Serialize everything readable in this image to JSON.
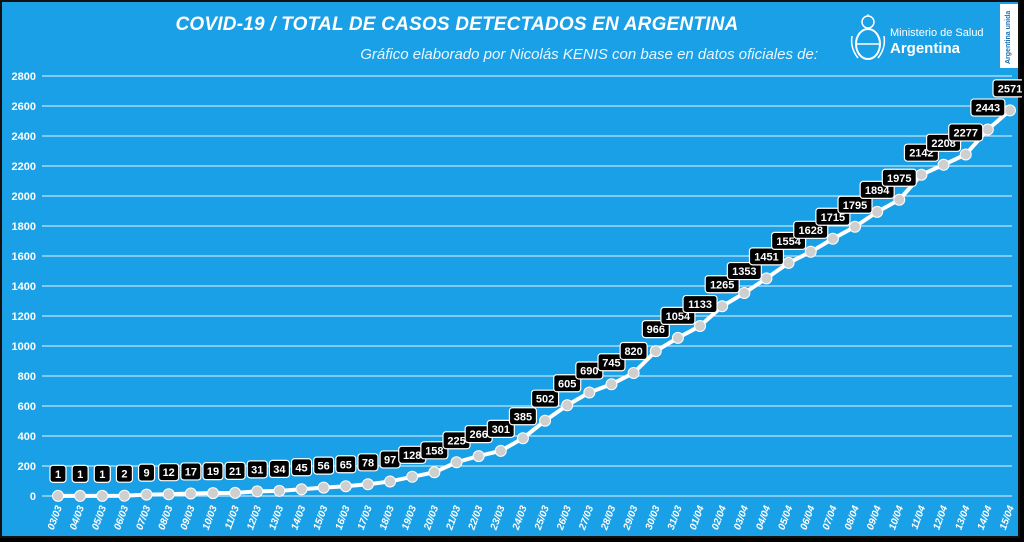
{
  "header": {
    "title": "COVID-19  /  TOTAL DE CASOS DETECTADOS EN ARGENTINA",
    "subtitle": "Gráfico elaborado por Nicolás KENIS con base en datos oficiales de:"
  },
  "logo": {
    "line1": "Ministerio de Salud",
    "line2": "Argentina",
    "badge": "Argentina unida"
  },
  "colors": {
    "background": "#1aa0e6",
    "line": "#ffffff",
    "marker": "#cfcfcf",
    "label_bg": "#000000",
    "label_text": "#ffffff",
    "grid": "#ffffff"
  },
  "chart_data": {
    "type": "line",
    "title": "COVID-19  /  TOTAL DE CASOS DETECTADOS EN ARGENTINA",
    "subtitle": "Gráfico elaborado por Nicolás KENIS con base en datos oficiales de:",
    "xlabel": "",
    "ylabel": "",
    "ylim": [
      0,
      2800
    ],
    "yticks": [
      0,
      200,
      400,
      600,
      800,
      1000,
      1200,
      1400,
      1600,
      1800,
      2000,
      2200,
      2400,
      2600,
      2800
    ],
    "grid": true,
    "categories": [
      "03/03",
      "04/03",
      "05/03",
      "06/03",
      "07/03",
      "08/03",
      "09/03",
      "10/03",
      "11/03",
      "12/03",
      "13/03",
      "14/03",
      "15/03",
      "16/03",
      "17/03",
      "18/03",
      "19/03",
      "20/03",
      "21/03",
      "22/03",
      "23/03",
      "24/03",
      "25/03",
      "26/03",
      "27/03",
      "28/03",
      "29/03",
      "30/03",
      "31/03",
      "01/04",
      "02/04",
      "03/04",
      "04/04",
      "05/04",
      "06/04",
      "07/04",
      "08/04",
      "09/04",
      "10/04",
      "11/04",
      "12/04",
      "13/04",
      "14/04",
      "15/04"
    ],
    "values": [
      1,
      1,
      1,
      2,
      9,
      12,
      17,
      19,
      21,
      31,
      34,
      45,
      56,
      65,
      78,
      97,
      128,
      158,
      225,
      266,
      301,
      385,
      502,
      605,
      690,
      745,
      820,
      966,
      1054,
      1133,
      1265,
      1353,
      1451,
      1554,
      1628,
      1715,
      1795,
      1894,
      1975,
      2142,
      2208,
      2277,
      2443,
      2571
    ]
  }
}
